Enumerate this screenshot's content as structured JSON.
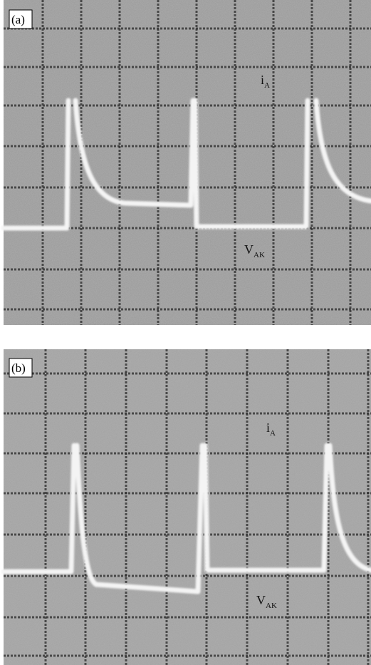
{
  "panels": [
    {
      "tag": "(a)",
      "trace_1": {
        "main": "i",
        "sub": "A"
      },
      "trace_2": {
        "main": "V",
        "sub": "AK"
      }
    },
    {
      "tag": "(b)",
      "trace_1": {
        "main": "i",
        "sub": "A"
      },
      "trace_2": {
        "main": "V",
        "sub": "AK"
      }
    }
  ]
}
